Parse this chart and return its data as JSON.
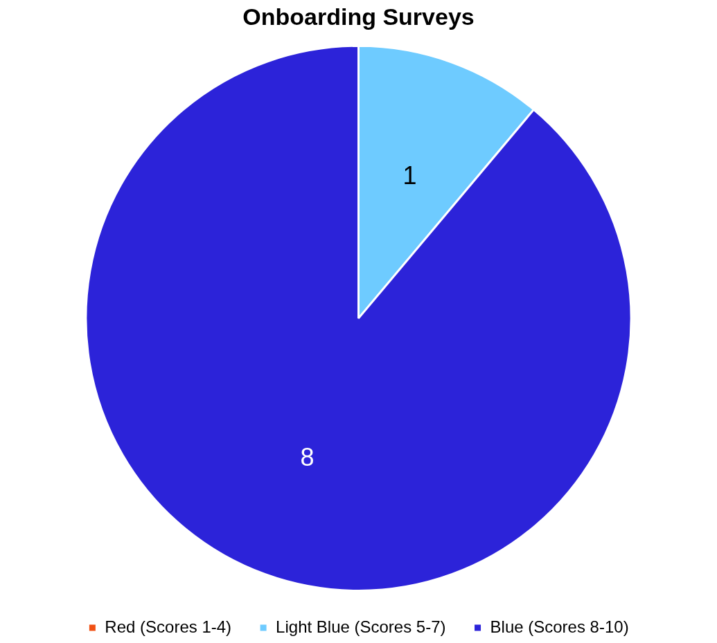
{
  "chart_data": {
    "type": "pie",
    "title": "Onboarding Surveys",
    "categories": [
      "Red (Scores 1-4)",
      "Light Blue (Scores 5-7)",
      "Blue (Scores 8-10)"
    ],
    "values": [
      0,
      1,
      8
    ],
    "colors": [
      "#f05014",
      "#6ecbff",
      "#2c23d9"
    ],
    "value_labels": [
      null,
      "1",
      "8"
    ],
    "legend": "bottom"
  }
}
